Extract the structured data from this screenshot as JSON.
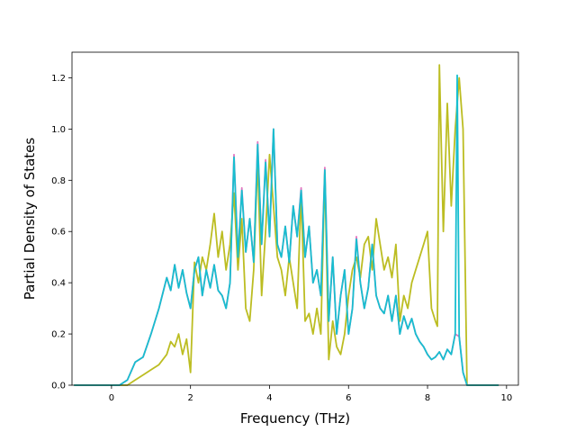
{
  "chart_data": {
    "type": "line",
    "xlabel": "Frequency (THz)",
    "ylabel": "Partial Density of States",
    "xlim": [
      -1.0,
      10.3
    ],
    "ylim": [
      0.0,
      1.3
    ],
    "x_ticks": [
      0,
      2,
      4,
      6,
      8,
      10
    ],
    "y_ticks": [
      0.0,
      0.2,
      0.4,
      0.6,
      0.8,
      1.0,
      1.2
    ],
    "x_tick_labels": [
      "0",
      "2",
      "4",
      "6",
      "8",
      "10"
    ],
    "y_tick_labels": [
      "0.0",
      "0.2",
      "0.4",
      "0.6",
      "0.8",
      "1.0",
      "1.2"
    ],
    "grid": false,
    "series": [
      {
        "color": "#e377c2",
        "x": [
          -0.95,
          0.0,
          0.2,
          0.4,
          0.6,
          0.8,
          1.0,
          1.2,
          1.4,
          1.5,
          1.6,
          1.7,
          1.8,
          1.9,
          2.0,
          2.1,
          2.2,
          2.3,
          2.4,
          2.5,
          2.6,
          2.7,
          2.8,
          2.9,
          3.0,
          3.1,
          3.2,
          3.3,
          3.4,
          3.5,
          3.6,
          3.7,
          3.8,
          3.9,
          4.0,
          4.1,
          4.2,
          4.3,
          4.4,
          4.5,
          4.6,
          4.7,
          4.8,
          4.9,
          5.0,
          5.1,
          5.2,
          5.3,
          5.4,
          5.5,
          5.6,
          5.7,
          5.8,
          5.9,
          6.0,
          6.1,
          6.2,
          6.3,
          6.4,
          6.5,
          6.6,
          6.7,
          6.8,
          6.9,
          7.0,
          7.1,
          7.2,
          7.3,
          7.4,
          7.5,
          7.6,
          7.7,
          7.8,
          7.9,
          8.0,
          8.1,
          8.2,
          8.3,
          8.4,
          8.5,
          8.6,
          8.7,
          8.8,
          8.9,
          9.0,
          9.5,
          9.8
        ],
        "values": [
          0.0,
          0.0,
          0.0,
          0.02,
          0.09,
          0.11,
          0.2,
          0.3,
          0.42,
          0.37,
          0.47,
          0.38,
          0.45,
          0.36,
          0.3,
          0.45,
          0.5,
          0.35,
          0.45,
          0.38,
          0.47,
          0.37,
          0.35,
          0.3,
          0.4,
          0.9,
          0.5,
          0.77,
          0.52,
          0.65,
          0.48,
          0.95,
          0.55,
          0.88,
          0.58,
          1.0,
          0.55,
          0.5,
          0.62,
          0.48,
          0.7,
          0.58,
          0.77,
          0.5,
          0.62,
          0.4,
          0.45,
          0.35,
          0.85,
          0.25,
          0.5,
          0.2,
          0.35,
          0.45,
          0.2,
          0.3,
          0.58,
          0.4,
          0.3,
          0.38,
          0.55,
          0.35,
          0.3,
          0.28,
          0.35,
          0.25,
          0.35,
          0.2,
          0.27,
          0.22,
          0.26,
          0.2,
          0.17,
          0.15,
          0.12,
          0.1,
          0.11,
          0.13,
          0.1,
          0.14,
          0.12,
          0.2,
          0.19,
          0.05,
          0.0,
          0.0,
          0.0
        ]
      },
      {
        "color": "#bcbd22",
        "x": [
          -0.95,
          0.0,
          0.2,
          0.4,
          0.6,
          0.8,
          1.0,
          1.2,
          1.4,
          1.5,
          1.6,
          1.7,
          1.8,
          1.9,
          2.0,
          2.1,
          2.2,
          2.3,
          2.4,
          2.5,
          2.6,
          2.7,
          2.8,
          2.9,
          3.0,
          3.1,
          3.2,
          3.3,
          3.4,
          3.5,
          3.6,
          3.7,
          3.8,
          3.9,
          4.0,
          4.1,
          4.2,
          4.3,
          4.4,
          4.5,
          4.6,
          4.7,
          4.8,
          4.9,
          5.0,
          5.1,
          5.2,
          5.3,
          5.4,
          5.5,
          5.6,
          5.7,
          5.8,
          5.9,
          6.0,
          6.1,
          6.2,
          6.3,
          6.4,
          6.5,
          6.6,
          6.7,
          6.8,
          6.9,
          7.0,
          7.1,
          7.2,
          7.3,
          7.4,
          7.5,
          7.6,
          7.7,
          7.8,
          7.9,
          8.0,
          8.1,
          8.2,
          8.25,
          8.3,
          8.4,
          8.5,
          8.6,
          8.7,
          8.8,
          8.9,
          9.0,
          9.5,
          9.8
        ],
        "values": [
          0.0,
          0.0,
          0.0,
          0.0,
          0.02,
          0.04,
          0.06,
          0.08,
          0.12,
          0.17,
          0.15,
          0.2,
          0.12,
          0.18,
          0.05,
          0.48,
          0.4,
          0.5,
          0.45,
          0.55,
          0.67,
          0.5,
          0.6,
          0.45,
          0.55,
          0.75,
          0.45,
          0.65,
          0.3,
          0.25,
          0.45,
          0.88,
          0.35,
          0.6,
          0.9,
          0.7,
          0.5,
          0.45,
          0.35,
          0.5,
          0.4,
          0.3,
          0.75,
          0.25,
          0.28,
          0.2,
          0.3,
          0.2,
          0.83,
          0.1,
          0.25,
          0.15,
          0.12,
          0.2,
          0.35,
          0.45,
          0.5,
          0.42,
          0.55,
          0.58,
          0.45,
          0.65,
          0.55,
          0.45,
          0.5,
          0.42,
          0.55,
          0.25,
          0.35,
          0.3,
          0.4,
          0.45,
          0.5,
          0.55,
          0.6,
          0.3,
          0.25,
          0.23,
          1.25,
          0.6,
          1.1,
          0.7,
          1.0,
          1.2,
          1.0,
          0.0,
          0.0,
          0.0
        ]
      },
      {
        "color": "#17becf",
        "x": [
          -0.95,
          0.0,
          0.2,
          0.4,
          0.6,
          0.8,
          1.0,
          1.2,
          1.4,
          1.5,
          1.6,
          1.7,
          1.8,
          1.9,
          2.0,
          2.1,
          2.2,
          2.3,
          2.4,
          2.5,
          2.6,
          2.7,
          2.8,
          2.9,
          3.0,
          3.1,
          3.2,
          3.3,
          3.4,
          3.5,
          3.6,
          3.7,
          3.8,
          3.9,
          4.0,
          4.1,
          4.2,
          4.3,
          4.4,
          4.5,
          4.6,
          4.7,
          4.8,
          4.9,
          5.0,
          5.1,
          5.2,
          5.3,
          5.4,
          5.5,
          5.6,
          5.7,
          5.8,
          5.9,
          6.0,
          6.1,
          6.2,
          6.3,
          6.4,
          6.5,
          6.6,
          6.7,
          6.8,
          6.9,
          7.0,
          7.1,
          7.2,
          7.3,
          7.4,
          7.5,
          7.6,
          7.7,
          7.8,
          7.9,
          8.0,
          8.1,
          8.2,
          8.3,
          8.4,
          8.5,
          8.6,
          8.7,
          8.75,
          8.8,
          8.9,
          9.0,
          9.5,
          9.8
        ],
        "values": [
          0.0,
          0.0,
          0.0,
          0.02,
          0.09,
          0.11,
          0.2,
          0.3,
          0.42,
          0.37,
          0.47,
          0.38,
          0.45,
          0.36,
          0.3,
          0.45,
          0.5,
          0.35,
          0.45,
          0.38,
          0.47,
          0.37,
          0.35,
          0.3,
          0.4,
          0.89,
          0.5,
          0.76,
          0.52,
          0.65,
          0.48,
          0.94,
          0.55,
          0.87,
          0.58,
          1.0,
          0.55,
          0.5,
          0.62,
          0.48,
          0.7,
          0.58,
          0.76,
          0.5,
          0.62,
          0.4,
          0.45,
          0.35,
          0.84,
          0.25,
          0.5,
          0.2,
          0.35,
          0.45,
          0.2,
          0.3,
          0.57,
          0.4,
          0.3,
          0.38,
          0.55,
          0.35,
          0.3,
          0.28,
          0.35,
          0.25,
          0.35,
          0.2,
          0.27,
          0.22,
          0.26,
          0.2,
          0.17,
          0.15,
          0.12,
          0.1,
          0.11,
          0.13,
          0.1,
          0.14,
          0.12,
          0.2,
          1.21,
          0.19,
          0.05,
          0.0,
          0.0,
          0.0
        ]
      }
    ]
  }
}
